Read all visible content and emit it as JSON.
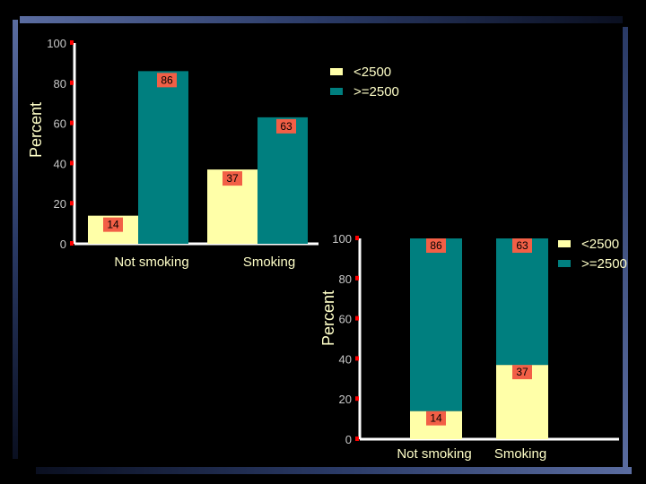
{
  "colors": {
    "low": "#FFFFA8",
    "high": "#007F7F",
    "label_bg": "#F25F46",
    "axis": "#FFFFFF",
    "tick_marker": "#FF0000"
  },
  "chart_data": [
    {
      "type": "bar",
      "categories": [
        "Not smoking",
        "Smoking"
      ],
      "series": [
        {
          "name": "<2500",
          "values": [
            14,
            37
          ]
        },
        {
          "name": ">=2500",
          "values": [
            86,
            63
          ]
        }
      ],
      "ylabel": "Percent",
      "yticks": [
        0,
        20,
        40,
        60,
        80,
        100
      ],
      "ylim": [
        0,
        100
      ],
      "legend": "top-right"
    },
    {
      "type": "bar",
      "stacked": true,
      "categories": [
        "Not smoking",
        "Smoking"
      ],
      "series": [
        {
          "name": "<2500",
          "values": [
            14,
            37
          ]
        },
        {
          "name": ">=2500",
          "values": [
            86,
            63
          ]
        }
      ],
      "ylabel": "Percent",
      "yticks": [
        0,
        20,
        40,
        60,
        80,
        100
      ],
      "ylim": [
        0,
        100
      ],
      "legend": "right"
    }
  ]
}
